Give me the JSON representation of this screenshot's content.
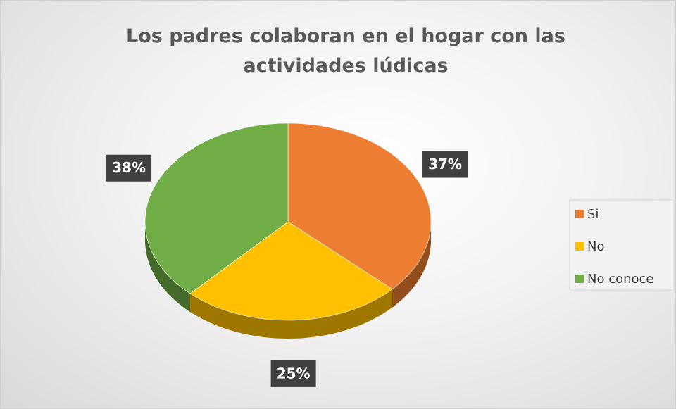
{
  "chart_data": {
    "type": "pie",
    "title": "Los padres colaboran en el hogar con las actividades lúdicas",
    "categories": [
      "Si",
      "No",
      "No conoce"
    ],
    "values": [
      37,
      25,
      38
    ],
    "value_labels": [
      "37%",
      "25%",
      "38%"
    ],
    "colors": [
      "#ED7D31",
      "#FFC000",
      "#70AD47"
    ],
    "legend": "right"
  }
}
